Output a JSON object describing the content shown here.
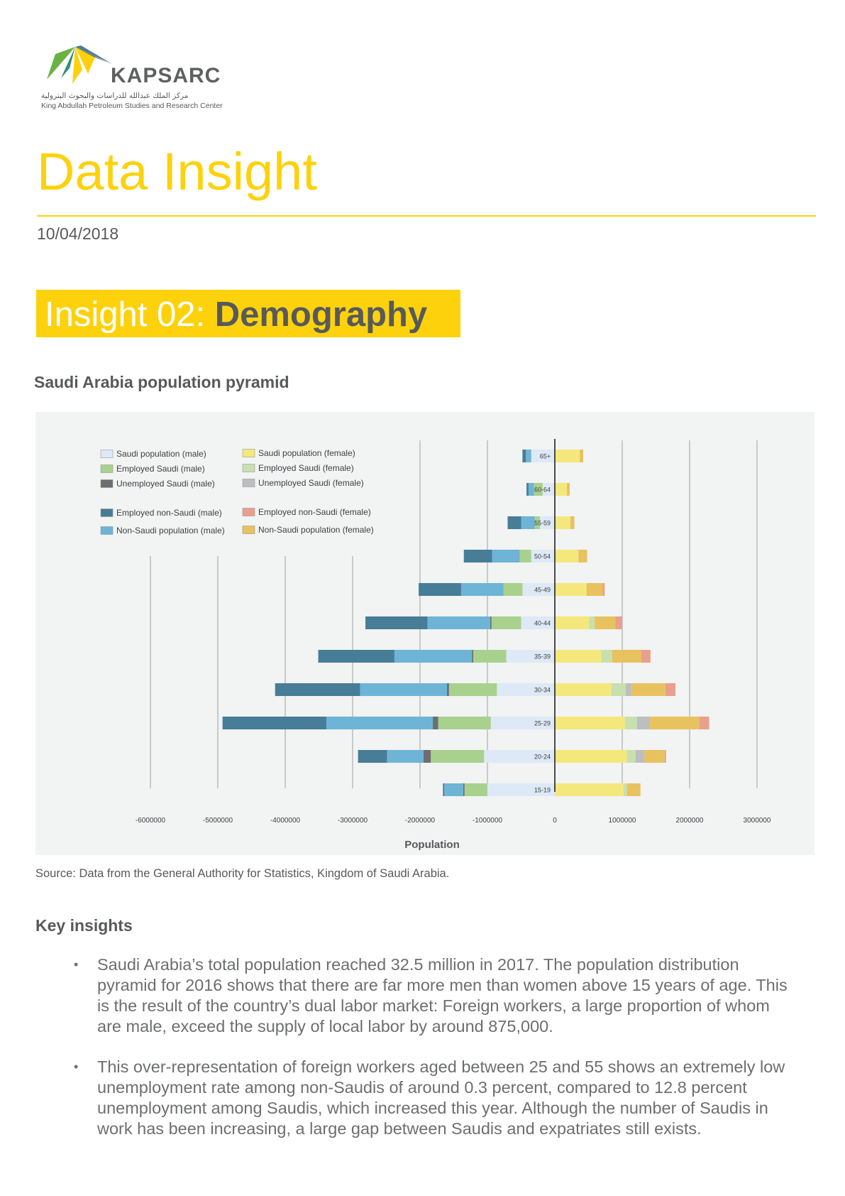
{
  "header": {
    "logo_word": "KAPSARC",
    "logo_arabic": "مركز الملك عبدالله للدراسات والبحوث البترولية",
    "logo_english": "King Abdullah Petroleum Studies and Research Center"
  },
  "title": "Data Insight",
  "date": "10/04/2018",
  "insight": {
    "prefix": "Insight 02: ",
    "name": "Demography"
  },
  "chart_heading": "Saudi Arabia population pyramid",
  "chart_data": {
    "type": "bar",
    "orientation": "horizontal",
    "stacked": true,
    "xlabel": "Population",
    "xlim": [
      -6000000,
      3000000
    ],
    "xticks": [
      -6000000,
      -5000000,
      -4000000,
      -3000000,
      -2000000,
      -1000000,
      0,
      1000000,
      2000000,
      3000000
    ],
    "xtick_labels": [
      "-6000000",
      "-5000000",
      "-4000000",
      "-3000000",
      "-2000000",
      "-1000000",
      "0",
      "1000000",
      "2000000",
      "3000000"
    ],
    "grid": true,
    "legend": "top-left",
    "categories": [
      "65+",
      "60-64",
      "55-59",
      "50-54",
      "45-49",
      "40-44",
      "35-39",
      "30-34",
      "25-29",
      "20-24",
      "15-19"
    ],
    "series": [
      {
        "name": "Saudi population (male)",
        "side": "male",
        "color": "#dde9f6",
        "values": [
          -350000,
          -180000,
          -220000,
          -350000,
          -480000,
          -500000,
          -720000,
          -860000,
          -950000,
          -1050000,
          -1000000
        ]
      },
      {
        "name": "Employed Saudi (male)",
        "side": "male",
        "color": "#a9d18e",
        "values": [
          0,
          -130000,
          -80000,
          -170000,
          -280000,
          -440000,
          -490000,
          -710000,
          -780000,
          -790000,
          -340000
        ]
      },
      {
        "name": "Unemployed Saudi (male)",
        "side": "male",
        "color": "#6d6e71",
        "values": [
          0,
          0,
          0,
          0,
          0,
          -20000,
          -20000,
          -30000,
          -80000,
          -110000,
          -20000
        ]
      },
      {
        "name": "Non-Saudi population (male)",
        "side": "male",
        "color": "#6eb4d7",
        "values": [
          -80000,
          -80000,
          -200000,
          -410000,
          -630000,
          -930000,
          -1150000,
          -1290000,
          -1580000,
          -540000,
          -280000
        ]
      },
      {
        "name": "Employed non-Saudi (male)",
        "side": "male",
        "color": "#477d96",
        "values": [
          -50000,
          -30000,
          -200000,
          -420000,
          -630000,
          -920000,
          -1130000,
          -1260000,
          -1540000,
          -430000,
          -20000
        ]
      },
      {
        "name": "Saudi population (female)",
        "side": "female",
        "color": "#f4e87c",
        "values": [
          370000,
          180000,
          230000,
          350000,
          470000,
          510000,
          690000,
          840000,
          1040000,
          1070000,
          1020000
        ]
      },
      {
        "name": "Employed Saudi (female)",
        "side": "female",
        "color": "#c8e0b0",
        "values": [
          0,
          0,
          0,
          0,
          0,
          80000,
          160000,
          210000,
          180000,
          130000,
          50000
        ]
      },
      {
        "name": "Unemployed Saudi (female)",
        "side": "female",
        "color": "#bcbec0",
        "values": [
          0,
          0,
          0,
          0,
          0,
          0,
          0,
          90000,
          190000,
          130000,
          0
        ]
      },
      {
        "name": "Non-Saudi population (female)",
        "side": "female",
        "color": "#e8c25f",
        "values": [
          50000,
          40000,
          60000,
          130000,
          240000,
          310000,
          430000,
          500000,
          730000,
          300000,
          200000
        ]
      },
      {
        "name": "Employed non-Saudi (female)",
        "side": "female",
        "color": "#e8a08c",
        "values": [
          0,
          0,
          0,
          0,
          30000,
          100000,
          140000,
          150000,
          150000,
          20000,
          0
        ]
      }
    ],
    "legend_entries": [
      {
        "label": "Saudi population (male)",
        "color": "#dde9f6"
      },
      {
        "label": "Employed Saudi (male)",
        "color": "#a9d18e"
      },
      {
        "label": "Unemployed Saudi (male)",
        "color": "#6d6e71"
      },
      {
        "label": "Employed non-Saudi (male)",
        "color": "#477d96"
      },
      {
        "label": "Non-Saudi population (male)",
        "color": "#6eb4d7"
      },
      {
        "label": "Saudi population (female)",
        "color": "#f4e87c"
      },
      {
        "label": "Employed Saudi (female)",
        "color": "#c8e0b0"
      },
      {
        "label": "Unemployed Saudi (female)",
        "color": "#bcbec0"
      },
      {
        "label": "Employed non-Saudi (female)",
        "color": "#e8a08c"
      },
      {
        "label": "Non-Saudi population (female)",
        "color": "#e8c25f"
      }
    ]
  },
  "source": "Source: Data from the General Authority for Statistics, Kingdom of Saudi Arabia.",
  "key_insights": {
    "heading": "Key insights",
    "bullet_symbol": "•",
    "items": [
      "Saudi Arabia’s total population reached 32.5 million in 2017. The population distribution pyramid for 2016 shows that there are far more men than women above 15 years of age. This is the result of the country’s dual labor market: Foreign workers, a large proportion of whom are male, exceed the supply of local labor by around 875,000.",
      "This over-representation of foreign workers aged between 25 and 55 shows an extremely low unemployment rate among non-Saudis of around 0.3 percent, compared to 12.8 percent unemployment among Saudis, which increased this year. Although the number of Saudis in work has been increasing, a large gap between Saudis and expatriates still exists."
    ]
  }
}
